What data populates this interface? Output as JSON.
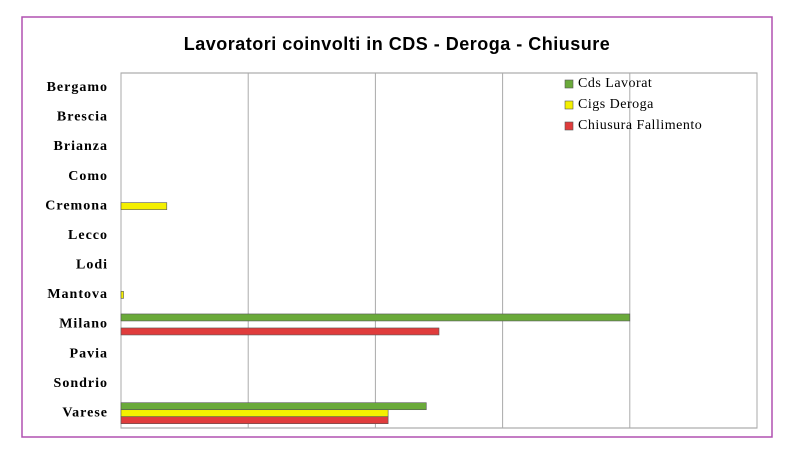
{
  "chart_data": {
    "type": "hbar",
    "title": "Lavoratori coinvolti in CDS - Deroga - Chiusure",
    "categories": [
      "Bergamo",
      "Brescia",
      "Brianza",
      "Como",
      "Cremona",
      "Lecco",
      "Lodi",
      "Mantova",
      "Milano",
      "Pavia",
      "Sondrio",
      "Varese"
    ],
    "series": [
      {
        "name": "Cds Lavorat",
        "color": "#6aaa3a",
        "values": [
          0,
          0,
          0,
          0,
          0,
          0,
          0,
          0,
          4.0,
          0,
          0,
          2.4
        ]
      },
      {
        "name": "Cigs Deroga",
        "color": "#f4f000",
        "values": [
          0,
          0,
          0,
          0,
          0.36,
          0,
          0,
          0.02,
          0,
          0,
          0,
          2.1
        ]
      },
      {
        "name": "Chiusura Fallimento",
        "color": "#e03c3c",
        "values": [
          0,
          0,
          0,
          0,
          0,
          0,
          0,
          0,
          2.5,
          0,
          0,
          2.1
        ]
      }
    ],
    "xlim": [
      0,
      5
    ],
    "xticks": [
      0,
      1,
      2,
      3,
      4,
      5
    ],
    "show_tick_labels": false,
    "grid": true,
    "legend": "top-right"
  }
}
